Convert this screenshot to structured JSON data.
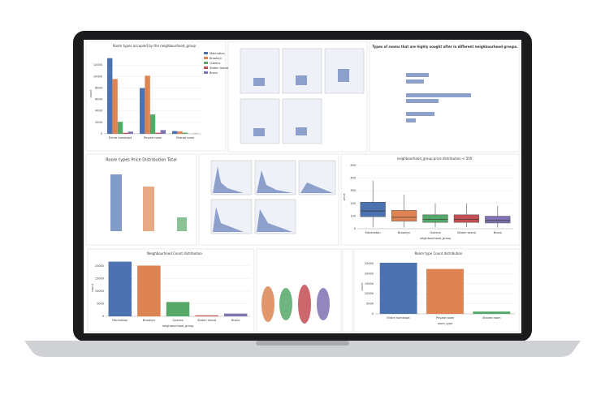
{
  "chart_data": [
    {
      "type": "bar",
      "title": "Room types occupied by the neighbourhood_group",
      "ylabel": "count",
      "categories": [
        "Entire home/apt",
        "Private room",
        "Shared room"
      ],
      "series": [
        {
          "name": "Manhattan",
          "color": "#4c72b0",
          "values": [
            13199,
            7982,
            480
          ]
        },
        {
          "name": "Brooklyn",
          "color": "#dd8452",
          "values": [
            9559,
            10132,
            413
          ]
        },
        {
          "name": "Queens",
          "color": "#55a868",
          "values": [
            2096,
            3372,
            198
          ]
        },
        {
          "name": "Staten Island",
          "color": "#c44e52",
          "values": [
            176,
            188,
            9
          ]
        },
        {
          "name": "Bronx",
          "color": "#8172b3",
          "values": [
            379,
            652,
            60
          ]
        }
      ],
      "ylim": [
        0,
        14000
      ],
      "yticks": [
        0,
        2000,
        4000,
        6000,
        8000,
        10000,
        12000
      ]
    },
    {
      "type": "box",
      "title": "neighbourhood_group price distribution < 500",
      "xlabel": "neighbourhood_group",
      "ylabel": "price",
      "categories": [
        "Manhattan",
        "Brooklyn",
        "Queens",
        "Staten Island",
        "Bronx"
      ],
      "colors": [
        "#4c72b0",
        "#dd8452",
        "#55a868",
        "#c44e52",
        "#8172b3"
      ],
      "q1": [
        95,
        60,
        50,
        50,
        45
      ],
      "median": [
        140,
        90,
        75,
        75,
        65
      ],
      "q3": [
        210,
        145,
        110,
        110,
        99
      ],
      "whisker_low": [
        10,
        10,
        10,
        13,
        10
      ],
      "whisker_high": [
        380,
        270,
        200,
        200,
        180
      ],
      "ylim": [
        0,
        500
      ],
      "yticks": [
        0,
        100,
        200,
        300,
        400,
        500
      ]
    },
    {
      "type": "bar",
      "title": "Neighbourhood Count distribution",
      "xlabel": "neighbourhood_group",
      "ylabel": "count",
      "categories": [
        "Manhattan",
        "Brooklyn",
        "Queens",
        "Staten Island",
        "Bronx"
      ],
      "colors": [
        "#4c72b0",
        "#dd8452",
        "#55a868",
        "#c44e52",
        "#8172b3"
      ],
      "values": [
        21661,
        20104,
        5666,
        373,
        1091
      ],
      "ylim": [
        0,
        22500
      ],
      "yticks": [
        0,
        5000,
        10000,
        15000,
        20000
      ]
    },
    {
      "type": "bar",
      "title": "Room type Count distribution",
      "xlabel": "room_type",
      "ylabel": "count",
      "categories": [
        "Entire home/apt",
        "Private room",
        "Shared room"
      ],
      "colors": [
        "#4c72b0",
        "#dd8452",
        "#55a868"
      ],
      "values": [
        25409,
        22326,
        1160
      ],
      "ylim": [
        0,
        27000
      ],
      "yticks": [
        0,
        5000,
        10000,
        15000,
        20000,
        25000
      ]
    }
  ],
  "panel_titles": [
    "Types of rooms that are highly sought after in different neighbourhood groups.",
    "Room types Price Distribution Total"
  ]
}
